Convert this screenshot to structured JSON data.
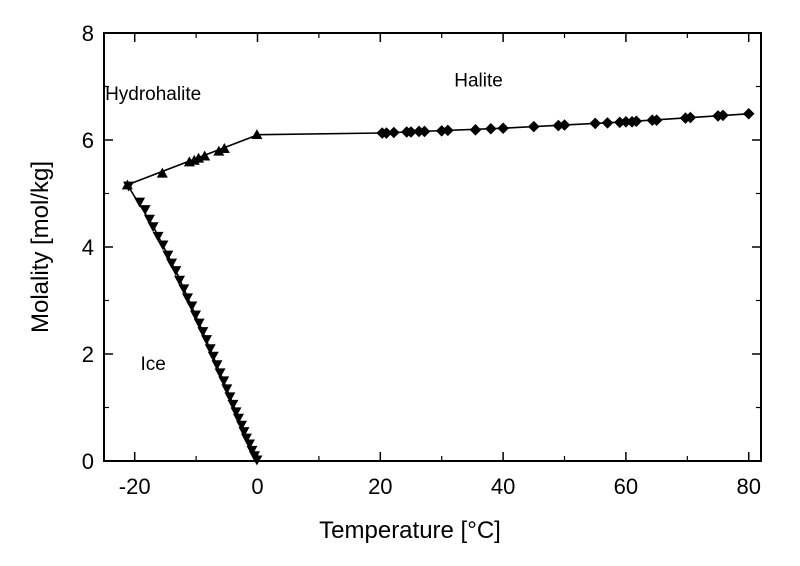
{
  "chart_data": {
    "type": "scatter",
    "xlabel": "Temperature [°C]",
    "ylabel": "Molality [mol/kg]",
    "xlim": [
      -25,
      82
    ],
    "ylim": [
      0,
      8
    ],
    "xticks": [
      -20,
      0,
      20,
      40,
      60,
      80
    ],
    "yticks": [
      0,
      2,
      4,
      6,
      8
    ],
    "xtick_labels": [
      "-20",
      "0",
      "20",
      "40",
      "60",
      "80"
    ],
    "ytick_labels": [
      "0",
      "2",
      "4",
      "6",
      "8"
    ],
    "grid": false,
    "annotations": [
      {
        "text": "Hydrohalite",
        "x": -17,
        "y": 6.75
      },
      {
        "text": "Halite",
        "x": 36,
        "y": 7.0
      },
      {
        "text": "Ice",
        "x": -17,
        "y": 1.7
      }
    ],
    "series": [
      {
        "marker": "triangle-up",
        "color": "#000000",
        "points": [
          [
            -21.2,
            5.16
          ],
          [
            -15.5,
            5.38
          ],
          [
            -11.1,
            5.59
          ],
          [
            -10.3,
            5.62
          ],
          [
            -9.6,
            5.66
          ],
          [
            -8.6,
            5.7
          ],
          [
            -6.3,
            5.79
          ],
          [
            -5.4,
            5.84
          ],
          [
            -0.1,
            6.1
          ]
        ],
        "line": [
          [
            -21.2,
            5.16
          ],
          [
            0.1,
            6.1
          ]
        ]
      },
      {
        "marker": "diamond",
        "color": "#000000",
        "points": [
          [
            20.3,
            6.13
          ],
          [
            21.0,
            6.13
          ],
          [
            22.2,
            6.14
          ],
          [
            24.3,
            6.15
          ],
          [
            25.0,
            6.15
          ],
          [
            26.3,
            6.16
          ],
          [
            27.2,
            6.16
          ],
          [
            30.0,
            6.17
          ],
          [
            31.0,
            6.18
          ],
          [
            35.5,
            6.19
          ],
          [
            38.0,
            6.21
          ],
          [
            40.0,
            6.22
          ],
          [
            45.0,
            6.25
          ],
          [
            49.0,
            6.27
          ],
          [
            50.0,
            6.28
          ],
          [
            55.0,
            6.31
          ],
          [
            57.0,
            6.32
          ],
          [
            59.0,
            6.33
          ],
          [
            60.0,
            6.34
          ],
          [
            61.0,
            6.34
          ],
          [
            61.7,
            6.35
          ],
          [
            64.3,
            6.37
          ],
          [
            65.0,
            6.37
          ],
          [
            69.7,
            6.41
          ],
          [
            70.5,
            6.42
          ],
          [
            75.0,
            6.45
          ],
          [
            75.8,
            6.46
          ],
          [
            80.0,
            6.49
          ]
        ],
        "line": [
          [
            0.1,
            6.1
          ],
          [
            20.3,
            6.13
          ],
          [
            40.0,
            6.22
          ],
          [
            60.0,
            6.34
          ],
          [
            80.0,
            6.49
          ]
        ]
      },
      {
        "marker": "triangle-down",
        "color": "#000000",
        "points": [
          [
            -21.0,
            5.14
          ],
          [
            -19.2,
            4.84
          ],
          [
            -18.3,
            4.7
          ],
          [
            -17.6,
            4.52
          ],
          [
            -17.0,
            4.38
          ],
          [
            -16.2,
            4.2
          ],
          [
            -15.4,
            4.04
          ],
          [
            -14.6,
            3.85
          ],
          [
            -14.0,
            3.7
          ],
          [
            -13.3,
            3.56
          ],
          [
            -12.7,
            3.38
          ],
          [
            -12.0,
            3.22
          ],
          [
            -11.4,
            3.05
          ],
          [
            -10.7,
            2.9
          ],
          [
            -10.1,
            2.73
          ],
          [
            -9.5,
            2.58
          ],
          [
            -8.9,
            2.42
          ],
          [
            -8.3,
            2.27
          ],
          [
            -7.7,
            2.1
          ],
          [
            -7.2,
            1.96
          ],
          [
            -6.6,
            1.8
          ],
          [
            -6.1,
            1.65
          ],
          [
            -5.5,
            1.5
          ],
          [
            -5.0,
            1.35
          ],
          [
            -4.5,
            1.2
          ],
          [
            -4.0,
            1.06
          ],
          [
            -3.5,
            0.92
          ],
          [
            -3.1,
            0.8
          ],
          [
            -2.6,
            0.67
          ],
          [
            -2.2,
            0.55
          ],
          [
            -1.8,
            0.43
          ],
          [
            -1.3,
            0.32
          ],
          [
            -0.9,
            0.2
          ],
          [
            -0.5,
            0.1
          ],
          [
            -0.1,
            0.02
          ]
        ],
        "line": [
          [
            -21.2,
            5.16
          ],
          [
            -17.0,
            4.39
          ],
          [
            -13.0,
            3.48
          ],
          [
            -9.0,
            2.44
          ],
          [
            -5.0,
            1.35
          ],
          [
            -2.0,
            0.5
          ],
          [
            0.0,
            0.0
          ]
        ]
      }
    ]
  }
}
